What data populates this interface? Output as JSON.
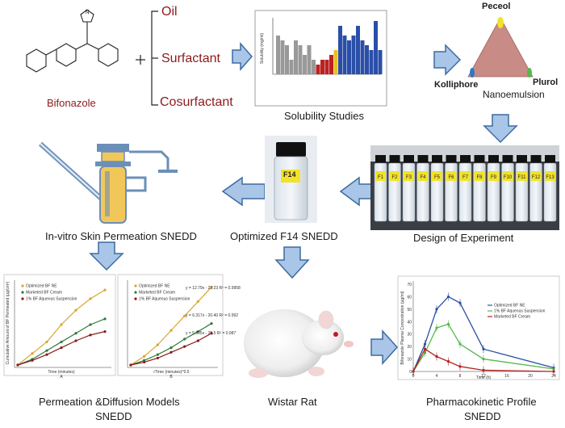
{
  "colors": {
    "arrow_fill": "#a9c6e8",
    "arrow_stroke": "#3d6aa0",
    "accent_text": "#8b1a1a",
    "triangle": "#c98b85",
    "peceol_dot": "#f2e229",
    "kolliphore_dot": "#2f77c8",
    "plurol_dot": "#55b84c"
  },
  "labels": {
    "bifonazole": "Bifonazole",
    "oil": "Oil",
    "surfactant": "Surfactant",
    "cosurfactant": "Cosurfactant",
    "solubility": "Solubility Studies",
    "nanoemulsion": "Nanoemulsion",
    "peceol": "Peceol",
    "kolliphore": "Kolliphore",
    "plurol": "Plurol",
    "doe": "Design of Experiment",
    "optimized": "Optimized F14 SNEDD",
    "invitro": "In-vitro  Skin Permeation SNEDD",
    "permeation_l1": "Permeation &Diffusion Models",
    "permeation_l2": "SNEDD",
    "rat": "Wistar Rat",
    "pk_l1": "Pharmacokinetic Profile",
    "pk_l2": "SNEDD",
    "vial_label": "F14"
  },
  "vials": [
    "F1",
    "F2",
    "F3",
    "F4",
    "F5",
    "F6",
    "F7",
    "F8",
    "F9",
    "F10",
    "F11",
    "F12",
    "F13"
  ],
  "icons": {
    "molecule": "bifonazole-structure-icon",
    "apparatus": "franz-diffusion-cell-icon",
    "rat": "wistar-rat-icon"
  },
  "solubility_chart": {
    "ylabel": "Solubility (mg/ml)",
    "values": [
      8,
      7,
      6,
      3,
      7,
      6,
      4,
      6,
      3,
      2,
      3,
      3,
      4,
      5,
      10,
      8,
      7,
      8,
      10,
      7,
      6,
      5,
      11,
      5
    ],
    "colors": [
      "#999",
      "#999",
      "#999",
      "#999",
      "#999",
      "#999",
      "#999",
      "#999",
      "#999",
      "#b22",
      "#b22",
      "#b22",
      "#b22",
      "#e8c020",
      "#2b4fa8",
      "#2b4fa8",
      "#2b4fa8",
      "#2b4fa8",
      "#2b4fa8",
      "#2b4fa8",
      "#2b4fa8",
      "#2b4fa8",
      "#2b4fa8",
      "#2b4fa8"
    ]
  },
  "permeation_chart_a": {
    "legend": [
      "Optimized BF NE",
      "Marketed BF Cream",
      "1% BF Aqueous Suspension"
    ],
    "xlabel": "Time (minutes)",
    "ylabel": "Cumulative Amount of BF Permeated (µg/cm²)",
    "panel": "A",
    "series": [
      {
        "color": "#d9a62c",
        "values": [
          0,
          20,
          40,
          70,
          95,
          115,
          130
        ]
      },
      {
        "color": "#2e7a3a",
        "values": [
          0,
          10,
          25,
          40,
          55,
          70,
          80
        ]
      },
      {
        "color": "#8b1a1a",
        "values": [
          0,
          8,
          18,
          30,
          42,
          52,
          58
        ]
      }
    ]
  },
  "permeation_chart_b": {
    "legend": [
      "Optimized BF NE",
      "Marketed BF Cream",
      "1% BF Aqueous Suspension"
    ],
    "xlabel": "√Time (minutes)^0.5",
    "panel": "B",
    "eq1": "y = 12.79x - 23.23  R² = 0.9958",
    "eq2": "y = 6.317x - 20.40  R² = 0.992",
    "eq3": "y = 5.905x - 20.5  R² = 0.987",
    "series": [
      {
        "color": "#d9a62c",
        "values": [
          0,
          15,
          35,
          60,
          85,
          110,
          135
        ]
      },
      {
        "color": "#2e7a3a",
        "values": [
          0,
          8,
          18,
          30,
          45,
          58,
          72
        ]
      },
      {
        "color": "#8b1a1a",
        "values": [
          0,
          5,
          12,
          22,
          32,
          42,
          55
        ]
      }
    ]
  },
  "pk_chart": {
    "ylabel": "Bifonazole Plasma Concentration (µg/ml)",
    "xlabel": "Time (h)",
    "legend": [
      "Optimized BF NE",
      "1% BF Aqueous Suspension",
      "Marketed BF Cream"
    ],
    "x": [
      0,
      2,
      4,
      6,
      8,
      12,
      24
    ],
    "yticks": [
      "0",
      "10",
      "20",
      "30",
      "40",
      "50",
      "60",
      "70"
    ],
    "xticks": [
      "0",
      "4",
      "8",
      "12",
      "16",
      "20",
      "24"
    ],
    "series": [
      {
        "color": "#2b4fa8",
        "values": [
          0,
          22,
          50,
          60,
          55,
          18,
          3
        ]
      },
      {
        "color": "#55b84c",
        "values": [
          0,
          15,
          35,
          38,
          22,
          10,
          2
        ]
      },
      {
        "color": "#b22222",
        "values": [
          0,
          18,
          12,
          8,
          4,
          1,
          0
        ]
      }
    ]
  }
}
